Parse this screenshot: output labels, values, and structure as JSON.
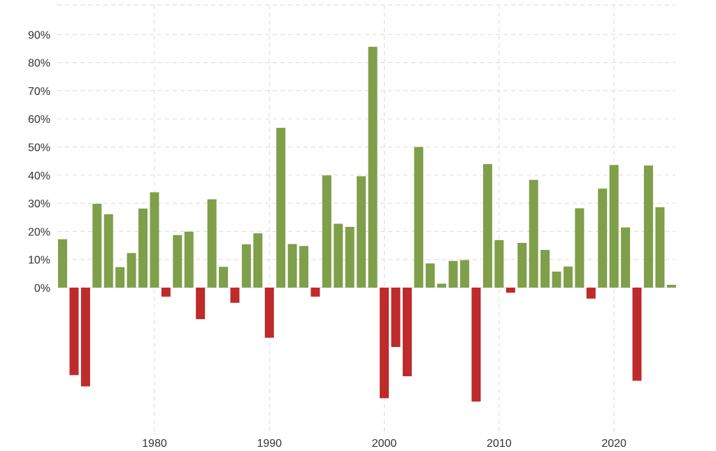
{
  "chart_data": {
    "type": "bar",
    "title": "",
    "xlabel": "",
    "ylabel": "",
    "grid": true,
    "legend": "none",
    "ylim": [
      -50,
      100
    ],
    "y_ticks": [
      0,
      10,
      20,
      30,
      40,
      50,
      60,
      70,
      80,
      90
    ],
    "y_tick_labels": [
      "0%",
      "10%",
      "20%",
      "30%",
      "40%",
      "50%",
      "60%",
      "70%",
      "80%",
      "90%"
    ],
    "x_ticks": [
      1980,
      1990,
      2000,
      2010,
      2020
    ],
    "x_tick_labels": [
      "1980",
      "1990",
      "2000",
      "2010",
      "2020"
    ],
    "colors": {
      "positive": "#7f9f4a",
      "negative": "#bf2a2a",
      "grid": "#d9d9d9",
      "text": "#333333"
    },
    "x": [
      1972,
      1973,
      1974,
      1975,
      1976,
      1977,
      1978,
      1979,
      1980,
      1981,
      1982,
      1983,
      1984,
      1985,
      1986,
      1987,
      1988,
      1989,
      1990,
      1991,
      1992,
      1993,
      1994,
      1995,
      1996,
      1997,
      1998,
      1999,
      2000,
      2001,
      2002,
      2003,
      2004,
      2005,
      2006,
      2007,
      2008,
      2009,
      2010,
      2011,
      2012,
      2013,
      2014,
      2015,
      2016,
      2017,
      2018,
      2019,
      2020,
      2021,
      2022,
      2023,
      2024,
      2025
    ],
    "values": [
      17.2,
      -31.1,
      -35.1,
      29.8,
      26.1,
      7.3,
      12.3,
      28.1,
      33.9,
      -3.2,
      18.7,
      19.9,
      -11.2,
      31.4,
      7.4,
      -5.4,
      15.4,
      19.3,
      -17.8,
      56.8,
      15.5,
      14.8,
      -3.2,
      39.9,
      22.7,
      21.6,
      39.6,
      85.6,
      -39.3,
      -21.1,
      -31.5,
      50.0,
      8.6,
      1.4,
      9.5,
      9.8,
      -40.5,
      43.9,
      16.9,
      -1.8,
      15.9,
      38.3,
      13.4,
      5.7,
      7.5,
      28.2,
      -3.9,
      35.2,
      43.6,
      21.4,
      -33.1,
      43.4,
      28.6,
      1.0
    ]
  }
}
